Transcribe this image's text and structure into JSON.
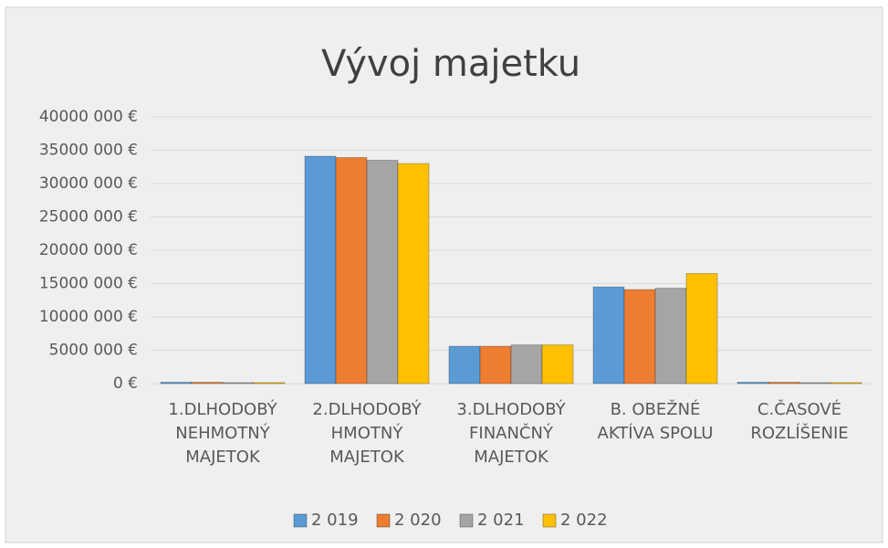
{
  "chart_data": {
    "type": "bar",
    "title": "Vývoj majetku",
    "categories": [
      "1.DLHODOBÝ NEHMOTNÝ MAJETOK",
      "2.DLHODOBÝ HMOTNÝ MAJETOK",
      "3.DLHODOBÝ FINANČNÝ MAJETOK",
      "B. OBEŽNÉ AKTÍVA SPOLU",
      "C.ČASOVÉ ROZLÍŠENIE"
    ],
    "series": [
      {
        "name": "2 019",
        "color": "#5b9bd5",
        "values": [
          200000,
          34100000,
          5600000,
          14500000,
          200000
        ]
      },
      {
        "name": "2 020",
        "color": "#ed7d31",
        "values": [
          200000,
          33900000,
          5600000,
          14100000,
          200000
        ]
      },
      {
        "name": "2 021",
        "color": "#a5a5a5",
        "values": [
          150000,
          33500000,
          5800000,
          14300000,
          150000
        ]
      },
      {
        "name": "2 022",
        "color": "#ffc000",
        "values": [
          150000,
          33000000,
          5800000,
          16500000,
          150000
        ]
      }
    ],
    "ylim": [
      0,
      40000000
    ],
    "yticks": [
      {
        "value": 0,
        "label": "0 €"
      },
      {
        "value": 5000000,
        "label": "5000 000 €"
      },
      {
        "value": 10000000,
        "label": "10000 000 €"
      },
      {
        "value": 15000000,
        "label": "15000 000 €"
      },
      {
        "value": 20000000,
        "label": "20000 000 €"
      },
      {
        "value": 25000000,
        "label": "25000 000 €"
      },
      {
        "value": 30000000,
        "label": "30000 000 €"
      },
      {
        "value": 35000000,
        "label": "35000 000 €"
      },
      {
        "value": 40000000,
        "label": "40000 000 €"
      }
    ],
    "grid": true,
    "legend": "bottom"
  }
}
